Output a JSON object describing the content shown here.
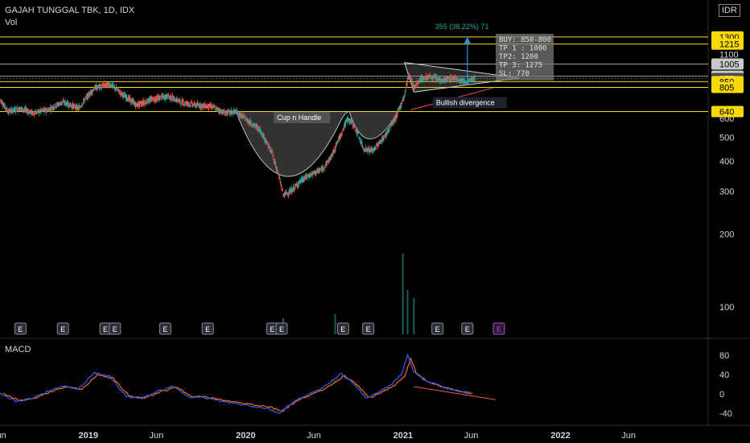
{
  "header": {
    "symbol_line": "GAJAH TUNGGAL TBK, 1D, IDX",
    "vol_label": "Vol",
    "currency": "IDR",
    "macd_label": "MACD"
  },
  "chart_data": {
    "type": "candlestick",
    "price_axis": {
      "ticks": [
        100,
        200,
        300,
        400,
        500,
        600,
        1100
      ],
      "min": 80,
      "max": 1360,
      "scale": "log"
    },
    "level_labels": [
      {
        "value": 1300,
        "label": "1300",
        "color": "#f5d90a",
        "kind": "yellow"
      },
      {
        "value": 1215,
        "label": "1215",
        "color": "#f5d90a",
        "kind": "yellow"
      },
      {
        "value": 1005,
        "label": "1005",
        "color": "#c8c8c8",
        "kind": "white"
      },
      {
        "value": 895,
        "label": "895",
        "color": "#c8c8c8",
        "kind": "white"
      },
      {
        "value": 875,
        "label": "875",
        "color": "#4a4a4a",
        "kind": "current"
      },
      {
        "value": 850,
        "label": "850",
        "color": "#f5d90a",
        "kind": "yellow"
      },
      {
        "value": 805,
        "label": "805",
        "color": "#f5d90a",
        "kind": "yellow"
      },
      {
        "value": 640,
        "label": "640",
        "color": "#f5d90a",
        "kind": "yellow"
      }
    ],
    "time_axis": [
      "Jun",
      "2019",
      "Jun",
      "2020",
      "Jun",
      "2021",
      "Jun",
      "2022",
      "Jun"
    ],
    "time_axis_positions": [
      2018.45,
      2019.0,
      2019.45,
      2020.0,
      2020.45,
      2021.0,
      2021.45,
      2022.0,
      2022.45
    ],
    "time_range": [
      2018.45,
      2022.95
    ],
    "price_path": [
      [
        2018.45,
        720
      ],
      [
        2018.5,
        640
      ],
      [
        2018.58,
        660
      ],
      [
        2018.66,
        630
      ],
      [
        2018.75,
        650
      ],
      [
        2018.85,
        700
      ],
      [
        2018.95,
        660
      ],
      [
        2019.05,
        800
      ],
      [
        2019.15,
        830
      ],
      [
        2019.22,
        760
      ],
      [
        2019.32,
        680
      ],
      [
        2019.42,
        720
      ],
      [
        2019.52,
        740
      ],
      [
        2019.6,
        700
      ],
      [
        2019.7,
        680
      ],
      [
        2019.8,
        670
      ],
      [
        2019.88,
        630
      ],
      [
        2019.95,
        640
      ],
      [
        2020.02,
        590
      ],
      [
        2020.1,
        540
      ],
      [
        2020.18,
        430
      ],
      [
        2020.25,
        290
      ],
      [
        2020.3,
        300
      ],
      [
        2020.36,
        330
      ],
      [
        2020.42,
        350
      ],
      [
        2020.5,
        370
      ],
      [
        2020.56,
        420
      ],
      [
        2020.62,
        520
      ],
      [
        2020.66,
        600
      ],
      [
        2020.7,
        560
      ],
      [
        2020.76,
        450
      ],
      [
        2020.82,
        440
      ],
      [
        2020.9,
        510
      ],
      [
        2020.97,
        610
      ],
      [
        2021.02,
        740
      ],
      [
        2021.05,
        920
      ],
      [
        2021.08,
        800
      ],
      [
        2021.12,
        870
      ],
      [
        2021.18,
        890
      ],
      [
        2021.26,
        860
      ],
      [
        2021.34,
        880
      ],
      [
        2021.42,
        850
      ],
      [
        2021.47,
        875
      ]
    ],
    "volume_spikes": [
      {
        "t": 2021.01,
        "v": 1.0
      },
      {
        "t": 2021.04,
        "v": 0.55
      },
      {
        "t": 2021.08,
        "v": 0.45
      },
      {
        "t": 2020.58,
        "v": 0.25
      },
      {
        "t": 2020.25,
        "v": 0.2
      }
    ],
    "earnings_markers": [
      2018.58,
      2018.85,
      2019.12,
      2019.18,
      2019.5,
      2019.77,
      2020.18,
      2020.24,
      2020.63,
      2020.79,
      2021.23,
      2021.42,
      2021.62
    ],
    "macd_axis": {
      "ticks": [
        80,
        40,
        0,
        -40
      ],
      "min": -55,
      "max": 95
    },
    "macd_path": [
      [
        2018.45,
        0
      ],
      [
        2018.55,
        -15
      ],
      [
        2018.65,
        -10
      ],
      [
        2018.75,
        5
      ],
      [
        2018.85,
        15
      ],
      [
        2018.95,
        10
      ],
      [
        2019.05,
        45
      ],
      [
        2019.15,
        35
      ],
      [
        2019.25,
        -5
      ],
      [
        2019.35,
        -10
      ],
      [
        2019.45,
        5
      ],
      [
        2019.55,
        15
      ],
      [
        2019.65,
        -5
      ],
      [
        2019.75,
        -8
      ],
      [
        2019.85,
        -15
      ],
      [
        2019.95,
        -20
      ],
      [
        2020.05,
        -25
      ],
      [
        2020.15,
        -30
      ],
      [
        2020.22,
        -40
      ],
      [
        2020.3,
        -20
      ],
      [
        2020.38,
        -5
      ],
      [
        2020.46,
        5
      ],
      [
        2020.55,
        25
      ],
      [
        2020.62,
        42
      ],
      [
        2020.7,
        20
      ],
      [
        2020.78,
        -10
      ],
      [
        2020.86,
        5
      ],
      [
        2020.94,
        20
      ],
      [
        2021.0,
        40
      ],
      [
        2021.04,
        80
      ],
      [
        2021.08,
        45
      ],
      [
        2021.14,
        30
      ],
      [
        2021.22,
        20
      ],
      [
        2021.3,
        10
      ],
      [
        2021.38,
        5
      ],
      [
        2021.44,
        0
      ]
    ],
    "annotations": {
      "cup_label": "Cup n Handle",
      "divergence_label": "Bullish divergence",
      "target_label": "355 (38.22%) 71",
      "trade_box": [
        "BUY: 850-800",
        "TP 1 : 1000",
        "TP2: 1200",
        "TP 3: 1275",
        "SL: 770"
      ]
    },
    "colors": {
      "up": "#26a69a",
      "down": "#ef5350",
      "yellow": "#f5d90a",
      "macd": "#2962ff",
      "signal": "#ff6d00",
      "arrow": "#2196f3"
    }
  }
}
